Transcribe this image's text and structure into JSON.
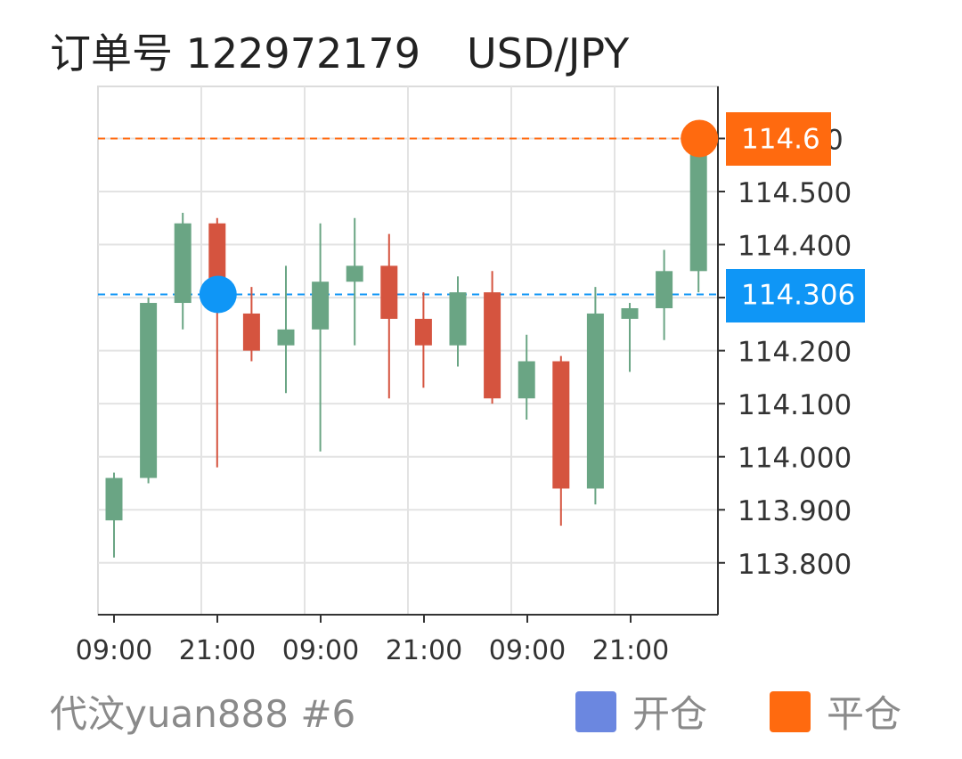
{
  "header": {
    "order_label": "订单号 122972179",
    "symbol": "USD/JPY"
  },
  "chart_data": {
    "type": "candlestick",
    "ylim": [
      113.7,
      114.7
    ],
    "y_ticks": [
      "114.500",
      "114.400",
      "114.200",
      "114.100",
      "114.000",
      "113.900",
      "113.800"
    ],
    "y_tick_partial": "0",
    "x_ticks": [
      "09:00",
      "21:00",
      "09:00",
      "21:00",
      "09:00",
      "21:00"
    ],
    "grid": true,
    "colors": {
      "up": "#6aa584",
      "down": "#d5543f",
      "open_marker": "#0f96f6",
      "close_marker": "#ff6a0f"
    },
    "candles": [
      {
        "o": 113.88,
        "h": 113.97,
        "l": 113.81,
        "c": 113.96
      },
      {
        "o": 113.96,
        "h": 114.3,
        "l": 113.95,
        "c": 114.29
      },
      {
        "o": 114.29,
        "h": 114.46,
        "l": 114.24,
        "c": 114.44
      },
      {
        "o": 114.44,
        "h": 114.45,
        "l": 113.98,
        "c": 114.28
      },
      {
        "o": 114.27,
        "h": 114.32,
        "l": 114.18,
        "c": 114.2
      },
      {
        "o": 114.21,
        "h": 114.36,
        "l": 114.12,
        "c": 114.24
      },
      {
        "o": 114.24,
        "h": 114.44,
        "l": 114.01,
        "c": 114.33
      },
      {
        "o": 114.33,
        "h": 114.45,
        "l": 114.21,
        "c": 114.36
      },
      {
        "o": 114.36,
        "h": 114.42,
        "l": 114.11,
        "c": 114.26
      },
      {
        "o": 114.26,
        "h": 114.31,
        "l": 114.13,
        "c": 114.21
      },
      {
        "o": 114.21,
        "h": 114.34,
        "l": 114.17,
        "c": 114.31
      },
      {
        "o": 114.31,
        "h": 114.35,
        "l": 114.1,
        "c": 114.11
      },
      {
        "o": 114.11,
        "h": 114.23,
        "l": 114.07,
        "c": 114.18
      },
      {
        "o": 114.18,
        "h": 114.19,
        "l": 113.87,
        "c": 113.94
      },
      {
        "o": 113.94,
        "h": 114.32,
        "l": 113.91,
        "c": 114.27
      },
      {
        "o": 114.26,
        "h": 114.29,
        "l": 114.16,
        "c": 114.28
      },
      {
        "o": 114.28,
        "h": 114.39,
        "l": 114.22,
        "c": 114.35
      },
      {
        "o": 114.35,
        "h": 114.63,
        "l": 114.31,
        "c": 114.62
      }
    ],
    "open_marker": {
      "candle_index": 3,
      "price": 114.306,
      "label": "114.306"
    },
    "close_marker": {
      "candle_index": 17,
      "price": 114.6,
      "label": "114.6"
    }
  },
  "footer": {
    "user": "代汶yuan888 #6",
    "legend_open": "开仓",
    "legend_close": "平仓",
    "legend_open_color": "#6b87e0",
    "legend_close_color": "#ff6a0f"
  }
}
